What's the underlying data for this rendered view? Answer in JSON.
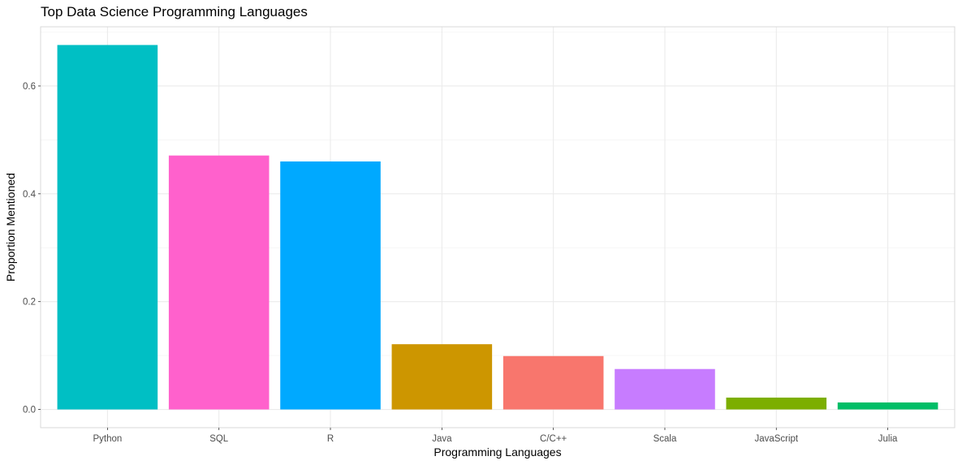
{
  "chart_data": {
    "type": "bar",
    "title": "Top Data Science Programming Languages",
    "xlabel": "Programming Languages",
    "ylabel": "Proportion Mentioned",
    "categories": [
      "Python",
      "SQL",
      "R",
      "Java",
      "C/C++",
      "Scala",
      "JavaScript",
      "Julia"
    ],
    "values": [
      0.676,
      0.471,
      0.46,
      0.121,
      0.099,
      0.075,
      0.022,
      0.013
    ],
    "colors": [
      "#00BFC4",
      "#FF61CC",
      "#00A9FF",
      "#CD9600",
      "#F8766D",
      "#C77CFF",
      "#7CAE00",
      "#00BE67"
    ],
    "ylim": [
      -0.0338,
      0.7098
    ],
    "yticks": [
      0.0,
      0.2,
      0.4,
      0.6
    ],
    "ytick_labels": [
      "0.0",
      "0.2",
      "0.4",
      "0.6"
    ],
    "grid": true,
    "legend": "none"
  }
}
